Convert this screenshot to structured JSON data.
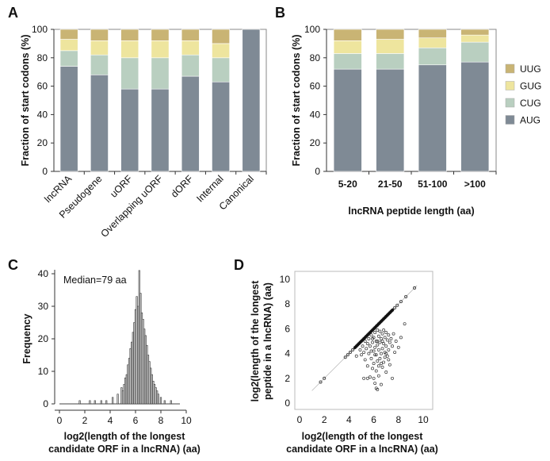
{
  "colors": {
    "AUG": "#7f8a95",
    "CUG": "#b9cfc0",
    "GUG": "#eee59e",
    "UUG": "#c9b474",
    "bin": "#d6d6d6",
    "scatter": "#333333",
    "bg": "#ffffff"
  },
  "chart_data": [
    {
      "panel": "A",
      "type": "bar",
      "stacked": true,
      "ylabel": "Fraction of start codons (%)",
      "ylim": [
        0,
        100
      ],
      "yticks": [
        0,
        20,
        40,
        60,
        80,
        100
      ],
      "categories": [
        "lncRNA",
        "Pseudogene",
        "uORF",
        "Overlapping uORF",
        "dORF",
        "Internal",
        "Canonical"
      ],
      "series": [
        {
          "name": "AUG",
          "values": [
            74,
            68,
            58,
            58,
            67,
            63,
            100
          ]
        },
        {
          "name": "CUG",
          "values": [
            11,
            14,
            22,
            22,
            15,
            17,
            0
          ]
        },
        {
          "name": "GUG",
          "values": [
            8,
            10,
            12,
            12,
            10,
            10,
            0
          ]
        },
        {
          "name": "UUG",
          "values": [
            7,
            8,
            8,
            8,
            8,
            10,
            0
          ]
        }
      ]
    },
    {
      "panel": "B",
      "type": "bar",
      "stacked": true,
      "ylabel": "Fraction of start codons (%)",
      "xlabel": "lncRNA peptide length (aa)",
      "ylim": [
        0,
        100
      ],
      "yticks": [
        0,
        20,
        40,
        60,
        80,
        100
      ],
      "categories": [
        "5-20",
        "21-50",
        "51-100",
        ">100"
      ],
      "series": [
        {
          "name": "AUG",
          "values": [
            72,
            72,
            75,
            77
          ]
        },
        {
          "name": "CUG",
          "values": [
            11,
            11,
            12,
            14
          ]
        },
        {
          "name": "GUG",
          "values": [
            9,
            10,
            7,
            5
          ]
        },
        {
          "name": "UUG",
          "values": [
            8,
            7,
            6,
            4
          ]
        }
      ],
      "legend": [
        "UUG",
        "GUG",
        "CUG",
        "AUG"
      ]
    },
    {
      "panel": "C",
      "type": "bar",
      "subtype": "histogram",
      "ylabel": "Frequency",
      "xlabel": "log2(length of the longest candidate ORF in a lncRNA) (aa)",
      "xlabel_lines": [
        "log2(length of the longest",
        "candidate ORF in a lncRNA) (aa)"
      ],
      "annotation": "Median=79 aa",
      "xlim": [
        0,
        10
      ],
      "ylim": [
        0,
        40
      ],
      "xticks": [
        0,
        2,
        4,
        6,
        8,
        10
      ],
      "yticks": [
        0,
        10,
        20,
        30,
        40
      ],
      "bins": [
        [
          1.6,
          1
        ],
        [
          2.4,
          1
        ],
        [
          2.8,
          1
        ],
        [
          3.3,
          1
        ],
        [
          3.7,
          1
        ],
        [
          4.2,
          2
        ],
        [
          4.6,
          3
        ],
        [
          4.9,
          5
        ],
        [
          5.0,
          4
        ],
        [
          5.1,
          6
        ],
        [
          5.2,
          8
        ],
        [
          5.3,
          9
        ],
        [
          5.4,
          12
        ],
        [
          5.5,
          14
        ],
        [
          5.6,
          17
        ],
        [
          5.7,
          19
        ],
        [
          5.8,
          22
        ],
        [
          5.9,
          25
        ],
        [
          6.0,
          29
        ],
        [
          6.1,
          33
        ],
        [
          6.2,
          30
        ],
        [
          6.3,
          41
        ],
        [
          6.4,
          34
        ],
        [
          6.5,
          28
        ],
        [
          6.6,
          26
        ],
        [
          6.7,
          23
        ],
        [
          6.8,
          21
        ],
        [
          6.9,
          18
        ],
        [
          7.0,
          15
        ],
        [
          7.1,
          13
        ],
        [
          7.2,
          11
        ],
        [
          7.3,
          9
        ],
        [
          7.4,
          7
        ],
        [
          7.5,
          6
        ],
        [
          7.6,
          5
        ],
        [
          7.7,
          4
        ],
        [
          7.8,
          3
        ],
        [
          8.0,
          2
        ],
        [
          8.3,
          1
        ],
        [
          8.8,
          1
        ]
      ]
    },
    {
      "panel": "D",
      "type": "scatter",
      "xlabel": "log2(length of the longest candidate ORF in a lncRNA) (aa)",
      "xlabel_lines": [
        "log2(length of the longest",
        "candidate ORF in a lncRNA) (aa)"
      ],
      "ylabel": "log2(length of the longest peptide in a lncRNA) (aa)",
      "ylabel_lines": [
        "log2(length of the longest",
        "peptide in a lncRNA) (aa)"
      ],
      "xlim": [
        0,
        10
      ],
      "ylim": [
        0,
        10
      ],
      "xticks": [
        0,
        2,
        4,
        6,
        8,
        10
      ],
      "yticks": [
        0,
        2,
        4,
        6,
        8,
        10
      ],
      "diagonal": [
        [
          3.7,
          3.7
        ],
        [
          3.9,
          3.9
        ],
        [
          4.1,
          4.1
        ],
        [
          4.3,
          4.3
        ],
        [
          4.5,
          4.5
        ],
        [
          4.6,
          4.6
        ],
        [
          4.7,
          4.7
        ],
        [
          4.8,
          4.8
        ],
        [
          4.9,
          4.9
        ],
        [
          5.0,
          5.0
        ],
        [
          5.1,
          5.1
        ],
        [
          5.2,
          5.2
        ],
        [
          5.3,
          5.3
        ],
        [
          5.4,
          5.4
        ],
        [
          5.5,
          5.5
        ],
        [
          5.6,
          5.6
        ],
        [
          5.7,
          5.7
        ],
        [
          5.8,
          5.8
        ],
        [
          5.9,
          5.9
        ],
        [
          6.0,
          6.0
        ],
        [
          6.1,
          6.1
        ],
        [
          6.2,
          6.2
        ],
        [
          6.3,
          6.3
        ],
        [
          6.4,
          6.4
        ],
        [
          6.5,
          6.5
        ],
        [
          6.6,
          6.6
        ],
        [
          6.7,
          6.7
        ],
        [
          6.8,
          6.8
        ],
        [
          6.9,
          6.9
        ],
        [
          7.0,
          7.0
        ],
        [
          7.1,
          7.1
        ],
        [
          7.2,
          7.2
        ],
        [
          7.3,
          7.3
        ],
        [
          7.4,
          7.4
        ],
        [
          7.5,
          7.5
        ],
        [
          7.7,
          7.7
        ],
        [
          7.9,
          7.9
        ],
        [
          8.2,
          8.2
        ],
        [
          8.6,
          8.6
        ],
        [
          9.3,
          9.3
        ],
        [
          1.7,
          1.7
        ],
        [
          2.0,
          2.0
        ]
      ],
      "scatter": [
        [
          4.6,
          3.8
        ],
        [
          4.9,
          4.3
        ],
        [
          5.0,
          3.9
        ],
        [
          5.1,
          4.6
        ],
        [
          5.2,
          4.1
        ],
        [
          5.3,
          5.0
        ],
        [
          5.3,
          3.5
        ],
        [
          5.4,
          4.4
        ],
        [
          5.5,
          4.8
        ],
        [
          5.5,
          3.0
        ],
        [
          5.6,
          5.2
        ],
        [
          5.6,
          4.0
        ],
        [
          5.7,
          2.1
        ],
        [
          5.7,
          4.6
        ],
        [
          5.8,
          5.5
        ],
        [
          5.8,
          3.6
        ],
        [
          5.9,
          4.9
        ],
        [
          5.9,
          2.8
        ],
        [
          6.0,
          5.3
        ],
        [
          6.0,
          4.2
        ],
        [
          6.0,
          3.2
        ],
        [
          6.1,
          5.7
        ],
        [
          6.1,
          4.5
        ],
        [
          6.1,
          1.6
        ],
        [
          6.2,
          5.0
        ],
        [
          6.2,
          3.9
        ],
        [
          6.2,
          2.6
        ],
        [
          6.3,
          5.9
        ],
        [
          6.3,
          4.7
        ],
        [
          6.3,
          3.4
        ],
        [
          6.3,
          1.1
        ],
        [
          6.4,
          5.4
        ],
        [
          6.4,
          4.3
        ],
        [
          6.4,
          2.2
        ],
        [
          6.5,
          5.8
        ],
        [
          6.5,
          4.9
        ],
        [
          6.5,
          3.6
        ],
        [
          6.6,
          5.2
        ],
        [
          6.6,
          4.0
        ],
        [
          6.6,
          1.5
        ],
        [
          6.7,
          5.6
        ],
        [
          6.7,
          4.4
        ],
        [
          6.7,
          2.9
        ],
        [
          6.8,
          5.9
        ],
        [
          6.8,
          4.8
        ],
        [
          6.8,
          3.3
        ],
        [
          6.9,
          5.3
        ],
        [
          6.9,
          4.1
        ],
        [
          7.0,
          5.7
        ],
        [
          7.0,
          4.6
        ],
        [
          7.0,
          2.5
        ],
        [
          7.1,
          5.1
        ],
        [
          7.1,
          3.8
        ],
        [
          7.2,
          5.5
        ],
        [
          7.2,
          4.3
        ],
        [
          7.3,
          4.9
        ],
        [
          7.3,
          3.1
        ],
        [
          7.4,
          5.2
        ],
        [
          7.5,
          4.6
        ],
        [
          7.5,
          2.0
        ],
        [
          7.6,
          5.6
        ],
        [
          7.7,
          4.1
        ],
        [
          7.8,
          5.0
        ],
        [
          8.0,
          4.5
        ],
        [
          8.2,
          5.3
        ],
        [
          8.5,
          6.4
        ],
        [
          5.5,
          2.0
        ],
        [
          5.2,
          2.0
        ],
        [
          6.2,
          1.2
        ],
        [
          6.0,
          2.0
        ],
        [
          5.8,
          4.2
        ],
        [
          6.4,
          3.0
        ],
        [
          6.6,
          3.2
        ],
        [
          6.9,
          3.7
        ],
        [
          7.2,
          3.5
        ],
        [
          6.1,
          3.9
        ],
        [
          5.9,
          5.2
        ],
        [
          6.3,
          5.0
        ],
        [
          6.7,
          5.0
        ],
        [
          7.0,
          4.0
        ]
      ]
    }
  ],
  "panel_labels": {
    "A": "A",
    "B": "B",
    "C": "C",
    "D": "D"
  }
}
